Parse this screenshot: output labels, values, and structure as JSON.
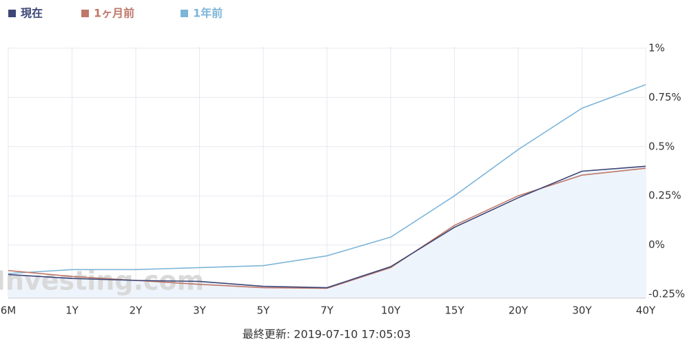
{
  "chart_data": {
    "type": "line",
    "categories": [
      "6M",
      "1Y",
      "2Y",
      "3Y",
      "5Y",
      "7Y",
      "10Y",
      "15Y",
      "20Y",
      "30Y",
      "40Y"
    ],
    "series": [
      {
        "name": "現在",
        "color": "#3d4677",
        "values": [
          -0.15,
          -0.17,
          -0.18,
          -0.185,
          -0.21,
          -0.217,
          -0.11,
          0.09,
          0.24,
          0.375,
          0.4
        ]
      },
      {
        "name": "1ヶ月前",
        "color": "#bf7769",
        "values": [
          -0.13,
          -0.16,
          -0.18,
          -0.2,
          -0.217,
          -0.22,
          -0.115,
          0.1,
          0.25,
          0.355,
          0.39
        ]
      },
      {
        "name": "1年前",
        "color": "#7db5d8",
        "values": [
          -0.145,
          -0.125,
          -0.125,
          -0.115,
          -0.105,
          -0.055,
          0.04,
          0.25,
          0.485,
          0.695,
          0.815
        ]
      }
    ],
    "ylim": [
      -0.27,
      1
    ],
    "yticks": [
      {
        "value": 1,
        "label": "1%"
      },
      {
        "value": 0.75,
        "label": "0.75%"
      },
      {
        "value": 0.5,
        "label": "0.5%"
      },
      {
        "value": 0.25,
        "label": "0.25%"
      },
      {
        "value": 0,
        "label": "0%"
      },
      {
        "value": -0.25,
        "label": "-0.25%"
      }
    ],
    "grid": true,
    "watermark": "Investing.com",
    "footer": "最終更新: 2019-07-10 17:05:03"
  }
}
